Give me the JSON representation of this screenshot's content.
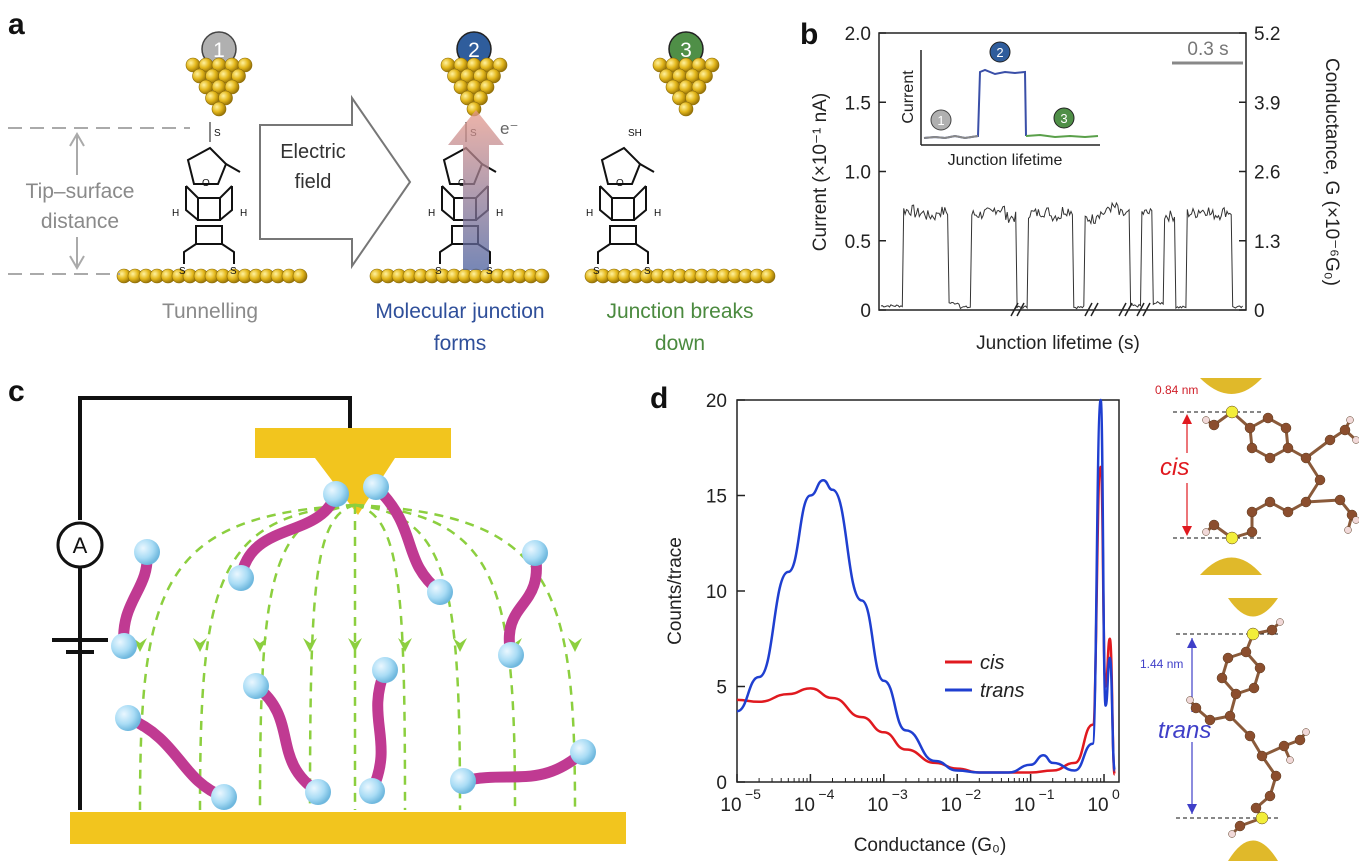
{
  "panels": {
    "a": {
      "label": "a",
      "step_numbers": [
        "1",
        "2",
        "3"
      ],
      "distance_label": [
        "Tip–surface",
        "distance"
      ],
      "arrow_label": [
        "Electric",
        "field"
      ],
      "electron_label": "e⁻",
      "sh_label": "SH",
      "s_label": "S",
      "h_label": "H",
      "o_label": "O",
      "captions": {
        "tunnelling": "Tunnelling",
        "forms_line1": "Molecular junction",
        "forms_line2": "forms",
        "breaks_line1": "Junction breaks",
        "breaks_line2": "down"
      },
      "colors": {
        "step1": "#b0b0b0",
        "step2": "#2f5d9c",
        "step3": "#4f8f47",
        "gold": "#e4b81c"
      }
    },
    "b": {
      "label": "b",
      "left_ticks": [
        "0",
        "0.5",
        "1.0",
        "1.5",
        "2.0"
      ],
      "right_ticks": [
        "0",
        "1.3",
        "2.6",
        "3.9",
        "5.2"
      ],
      "ylabel_left": "Current (×10⁻¹ nA)",
      "ylabel_right": "Conductance, G (×10⁻⁶G₀)",
      "xlabel": "Junction lifetime (s)",
      "scale_bar": "0.3 s",
      "inset": {
        "ylabel": "Current",
        "xlabel": "Junction lifetime",
        "step_numbers": [
          "1",
          "2",
          "3"
        ]
      }
    },
    "c": {
      "label": "c",
      "ammeter": "A"
    },
    "d": {
      "label": "d",
      "ylabel": "Counts/trace",
      "xlabel": "Conductance (G₀)",
      "yticks": [
        "0",
        "5",
        "10",
        "15",
        "20"
      ],
      "xticks": [
        {
          "base": "10",
          "exp": "−5"
        },
        {
          "base": "10",
          "exp": "−4"
        },
        {
          "base": "10",
          "exp": "−3"
        },
        {
          "base": "10",
          "exp": "−2"
        },
        {
          "base": "10",
          "exp": "−1"
        },
        {
          "base": "10",
          "exp": "0"
        }
      ],
      "legend": [
        {
          "name": "cis",
          "color": "#e0191f"
        },
        {
          "name": "trans",
          "color": "#1f3fd0"
        }
      ],
      "cis_length": "0.84 nm",
      "trans_length": "1.44 nm",
      "cis_tag": "cis",
      "trans_tag": "trans"
    }
  },
  "chart_data": [
    {
      "type": "line",
      "panel": "b",
      "ylabel": "Current (×10⁻¹ nA)",
      "y2label": "Conductance, G (×10⁻⁶G₀)",
      "xlabel": "Junction lifetime (s)",
      "ylim": [
        0,
        2.0
      ],
      "y2lim": [
        0,
        5.2
      ],
      "series": [
        {
          "values": [
            0.03,
            0.03,
            0.72,
            0.7,
            0.68,
            0.71,
            0.05,
            0.02,
            0.69,
            0.7,
            0.73,
            0.67,
            0.02,
            0.7,
            0.71,
            0.68,
            0.72,
            0.02,
            0.66,
            0.7,
            0.74,
            0.69,
            0.03,
            0.7,
            0.05,
            0.68,
            0.02,
            0.7,
            0.72,
            0.69,
            0.71,
            0.02
          ]
        }
      ]
    },
    {
      "type": "line",
      "panel": "d",
      "xlabel": "Conductance (G₀)",
      "ylabel": "Counts/trace",
      "xscale": "log",
      "xlim": [
        1e-05,
        1.6
      ],
      "ylim": [
        0,
        20
      ],
      "legend": "middle-right",
      "series": [
        {
          "name": "cis",
          "x": [
            1e-05,
            2e-05,
            5e-05,
            0.0001,
            0.0002,
            0.0005,
            0.001,
            0.002,
            0.005,
            0.01,
            0.02,
            0.05,
            0.1,
            0.2,
            0.4,
            0.7,
            0.9,
            1.05,
            1.2,
            1.4
          ],
          "y": [
            4.3,
            4.2,
            4.6,
            4.9,
            4.4,
            3.4,
            2.6,
            1.7,
            1.0,
            0.7,
            0.5,
            0.5,
            0.5,
            0.6,
            1.0,
            3.0,
            16.5,
            5.0,
            7.5,
            0.4
          ]
        },
        {
          "name": "trans",
          "x": [
            1e-05,
            2e-05,
            5e-05,
            0.0001,
            0.00015,
            0.0002,
            0.0005,
            0.001,
            0.002,
            0.005,
            0.01,
            0.02,
            0.05,
            0.1,
            0.15,
            0.2,
            0.4,
            0.7,
            0.9,
            1.05,
            1.2,
            1.4
          ],
          "y": [
            3.7,
            5.5,
            11.0,
            15.0,
            15.8,
            15.3,
            9.5,
            5.3,
            2.7,
            1.1,
            0.6,
            0.5,
            0.5,
            0.9,
            1.4,
            1.0,
            0.6,
            2.0,
            20.0,
            4.0,
            6.5,
            0.6
          ]
        }
      ]
    }
  ]
}
